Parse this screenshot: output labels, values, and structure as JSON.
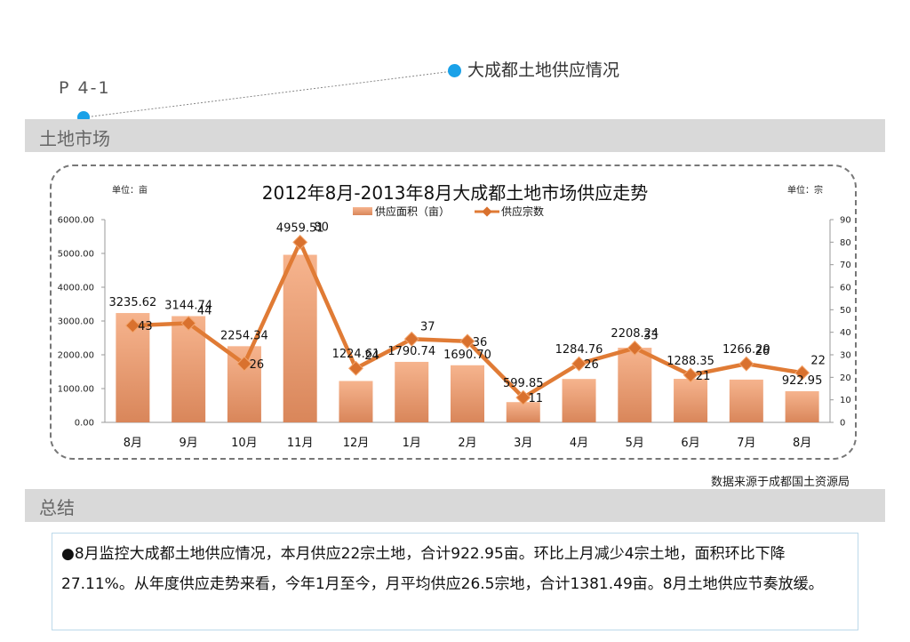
{
  "page": {
    "label": "P 4-1",
    "section_title": "大成都土地供应情况",
    "market_band": "土地市场",
    "summary_band": "总结",
    "source_note": "数据来源于成都国土资源局",
    "summary_text": "●8月监控大成都土地供应情况，本月供应22宗土地，合计922.95亩。环比上月减少4宗土地，面积环比下降27.11%。从年度供应走势来看，今年1月至今，月平均供应26.5宗地，合计1381.49亩。8月土地供应节奏放缓。"
  },
  "colors": {
    "accent_dot": "#1aa1e8",
    "band_gray": "#d9d9d9",
    "bar_top": "#f6b48e",
    "bar_bottom": "#d9865a",
    "line": "#e07b35",
    "marker": "#d9712e"
  },
  "chart_data": {
    "type": "bar",
    "title": "2012年8月-2013年8月大成都土地市场供应走势",
    "left_unit": "单位：亩",
    "right_unit": "单位：宗",
    "categories": [
      "8月",
      "9月",
      "10月",
      "11月",
      "12月",
      "1月",
      "2月",
      "3月",
      "4月",
      "5月",
      "6月",
      "7月",
      "8月"
    ],
    "series": [
      {
        "name": "供应面积（亩）",
        "type": "bar",
        "axis": "left",
        "values": [
          3235.62,
          3144.74,
          2254.34,
          4959.51,
          1224.61,
          1790.74,
          1690.7,
          599.85,
          1284.76,
          2208.24,
          1288.35,
          1266.29,
          922.95
        ],
        "labels": [
          "3235.62",
          "3144.74",
          "2254.34",
          "4959.51",
          "1224.61",
          "1790.74",
          "1690.70",
          "599.85",
          "1284.76",
          "2208.24",
          "1288.35",
          "1266.29",
          "922.95"
        ]
      },
      {
        "name": "供应宗数",
        "type": "line",
        "axis": "right",
        "values": [
          43,
          44,
          26,
          80,
          24,
          37,
          36,
          11,
          26,
          33,
          21,
          26,
          22
        ]
      }
    ],
    "y_left": {
      "min": 0,
      "max": 6000,
      "ticks": [
        "0.00",
        "1000.00",
        "2000.00",
        "3000.00",
        "4000.00",
        "5000.00",
        "6000.00"
      ]
    },
    "y_right": {
      "min": 0,
      "max": 90,
      "ticks": [
        "0",
        "10",
        "20",
        "30",
        "40",
        "50",
        "60",
        "70",
        "80",
        "90"
      ]
    },
    "legend_position": "top-center",
    "grid": false
  }
}
